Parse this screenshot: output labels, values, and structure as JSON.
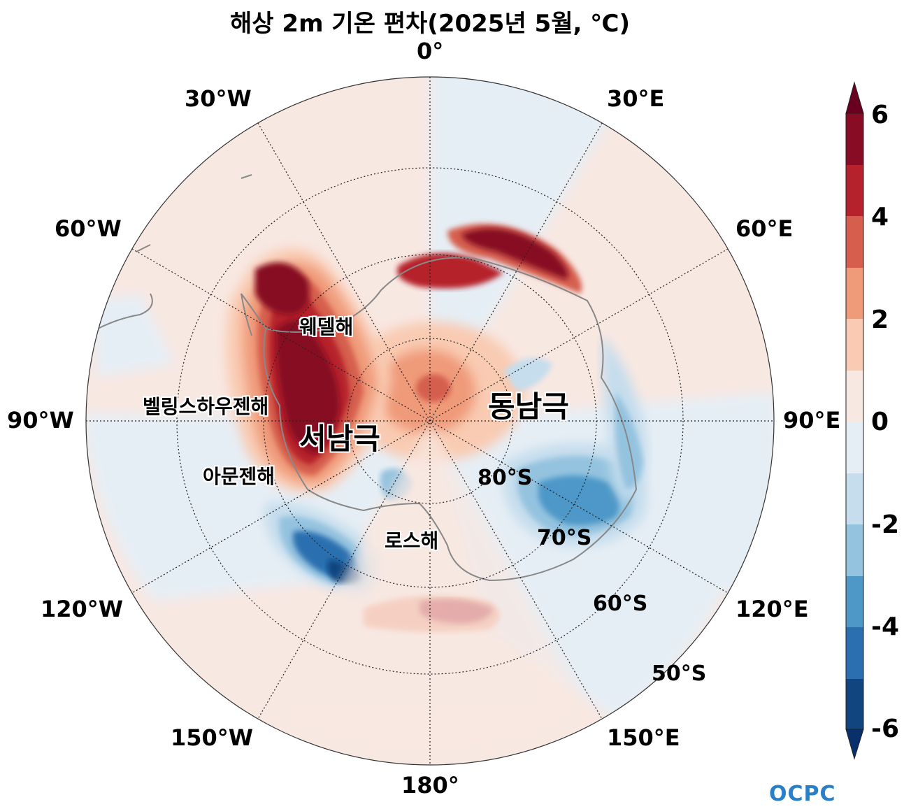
{
  "title": "해상 2m 기온 편차(2025년 5월, ℃)",
  "longitude_labels": {
    "lon_0": "0°",
    "lon_30e": "30°E",
    "lon_60e": "60°E",
    "lon_90e": "90°E",
    "lon_120e": "120°E",
    "lon_150e": "150°E",
    "lon_180": "180°",
    "lon_150w": "150°W",
    "lon_120w": "120°W",
    "lon_90w": "90°W",
    "lon_60w": "60°W",
    "lon_30w": "30°W"
  },
  "latitude_labels": {
    "lat_80s": "80°S",
    "lat_70s": "70°S",
    "lat_60s": "60°S",
    "lat_50s": "50°S"
  },
  "regions": {
    "weddell_sea": "웨델해",
    "bellingshausen_sea": "벨링스하우젠해",
    "west_antarctica": "서남극",
    "amundsen_sea": "아문젠해",
    "ross_sea": "로스해",
    "east_antarctica": "동남극"
  },
  "colorbar": {
    "ticks": [
      "6",
      "4",
      "2",
      "0",
      "-2",
      "-4",
      "-6"
    ],
    "colors": [
      "#6a0020",
      "#870c24",
      "#b6222c",
      "#d55e4d",
      "#ef9a79",
      "#f9cbb2",
      "#f8e8e2",
      "#e6eef5",
      "#c5dded",
      "#94c3df",
      "#4e98c8",
      "#2b6fb0",
      "#10457f",
      "#08306b"
    ],
    "ticks_note_none": ""
  },
  "logo": "OCPC",
  "colors": {
    "background": "#ffffff",
    "frame": "#333333",
    "coast": "#888888"
  }
}
